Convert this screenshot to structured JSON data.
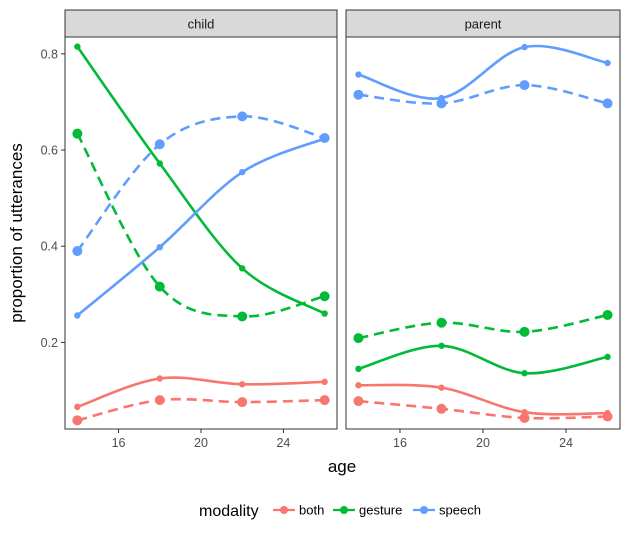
{
  "chart_data": {
    "type": "line",
    "facets": [
      "child",
      "parent"
    ],
    "xlabel": "age",
    "ylabel": "proportion of utterances",
    "xlim": [
      13.4,
      26.6
    ],
    "ylim": [
      0.02,
      0.835
    ],
    "xticks": [
      16,
      20,
      24
    ],
    "yticks": [
      0.2,
      0.4,
      0.6,
      0.8
    ],
    "x": [
      14,
      18,
      22,
      26
    ],
    "legend": {
      "title": "modality",
      "position": "bottom",
      "entries": [
        {
          "name": "both",
          "color": "#F8766D"
        },
        {
          "name": "gesture",
          "color": "#00BA38"
        },
        {
          "name": "speech",
          "color": "#619CFF"
        }
      ]
    },
    "series": [
      {
        "facet": "child",
        "modality": "both",
        "line": "solid",
        "values": [
          0.066,
          0.125,
          0.113,
          0.118
        ]
      },
      {
        "facet": "child",
        "modality": "both",
        "line": "dashed",
        "values": [
          0.038,
          0.08,
          0.076,
          0.08
        ]
      },
      {
        "facet": "child",
        "modality": "gesture",
        "line": "solid",
        "values": [
          0.815,
          0.572,
          0.354,
          0.26
        ]
      },
      {
        "facet": "child",
        "modality": "gesture",
        "line": "dashed",
        "values": [
          0.634,
          0.316,
          0.254,
          0.296
        ]
      },
      {
        "facet": "child",
        "modality": "speech",
        "line": "solid",
        "values": [
          0.256,
          0.398,
          0.554,
          0.624
        ]
      },
      {
        "facet": "child",
        "modality": "speech",
        "line": "dashed",
        "values": [
          0.39,
          0.612,
          0.67,
          0.625
        ]
      },
      {
        "facet": "parent",
        "modality": "both",
        "line": "solid",
        "values": [
          0.111,
          0.106,
          0.055,
          0.053
        ]
      },
      {
        "facet": "parent",
        "modality": "both",
        "line": "dashed",
        "values": [
          0.078,
          0.062,
          0.043,
          0.046
        ]
      },
      {
        "facet": "parent",
        "modality": "gesture",
        "line": "solid",
        "values": [
          0.145,
          0.193,
          0.136,
          0.17
        ]
      },
      {
        "facet": "parent",
        "modality": "gesture",
        "line": "dashed",
        "values": [
          0.209,
          0.241,
          0.222,
          0.257
        ]
      },
      {
        "facet": "parent",
        "modality": "speech",
        "line": "solid",
        "values": [
          0.757,
          0.708,
          0.814,
          0.781
        ]
      },
      {
        "facet": "parent",
        "modality": "speech",
        "line": "dashed",
        "values": [
          0.715,
          0.697,
          0.735,
          0.697
        ]
      }
    ]
  }
}
